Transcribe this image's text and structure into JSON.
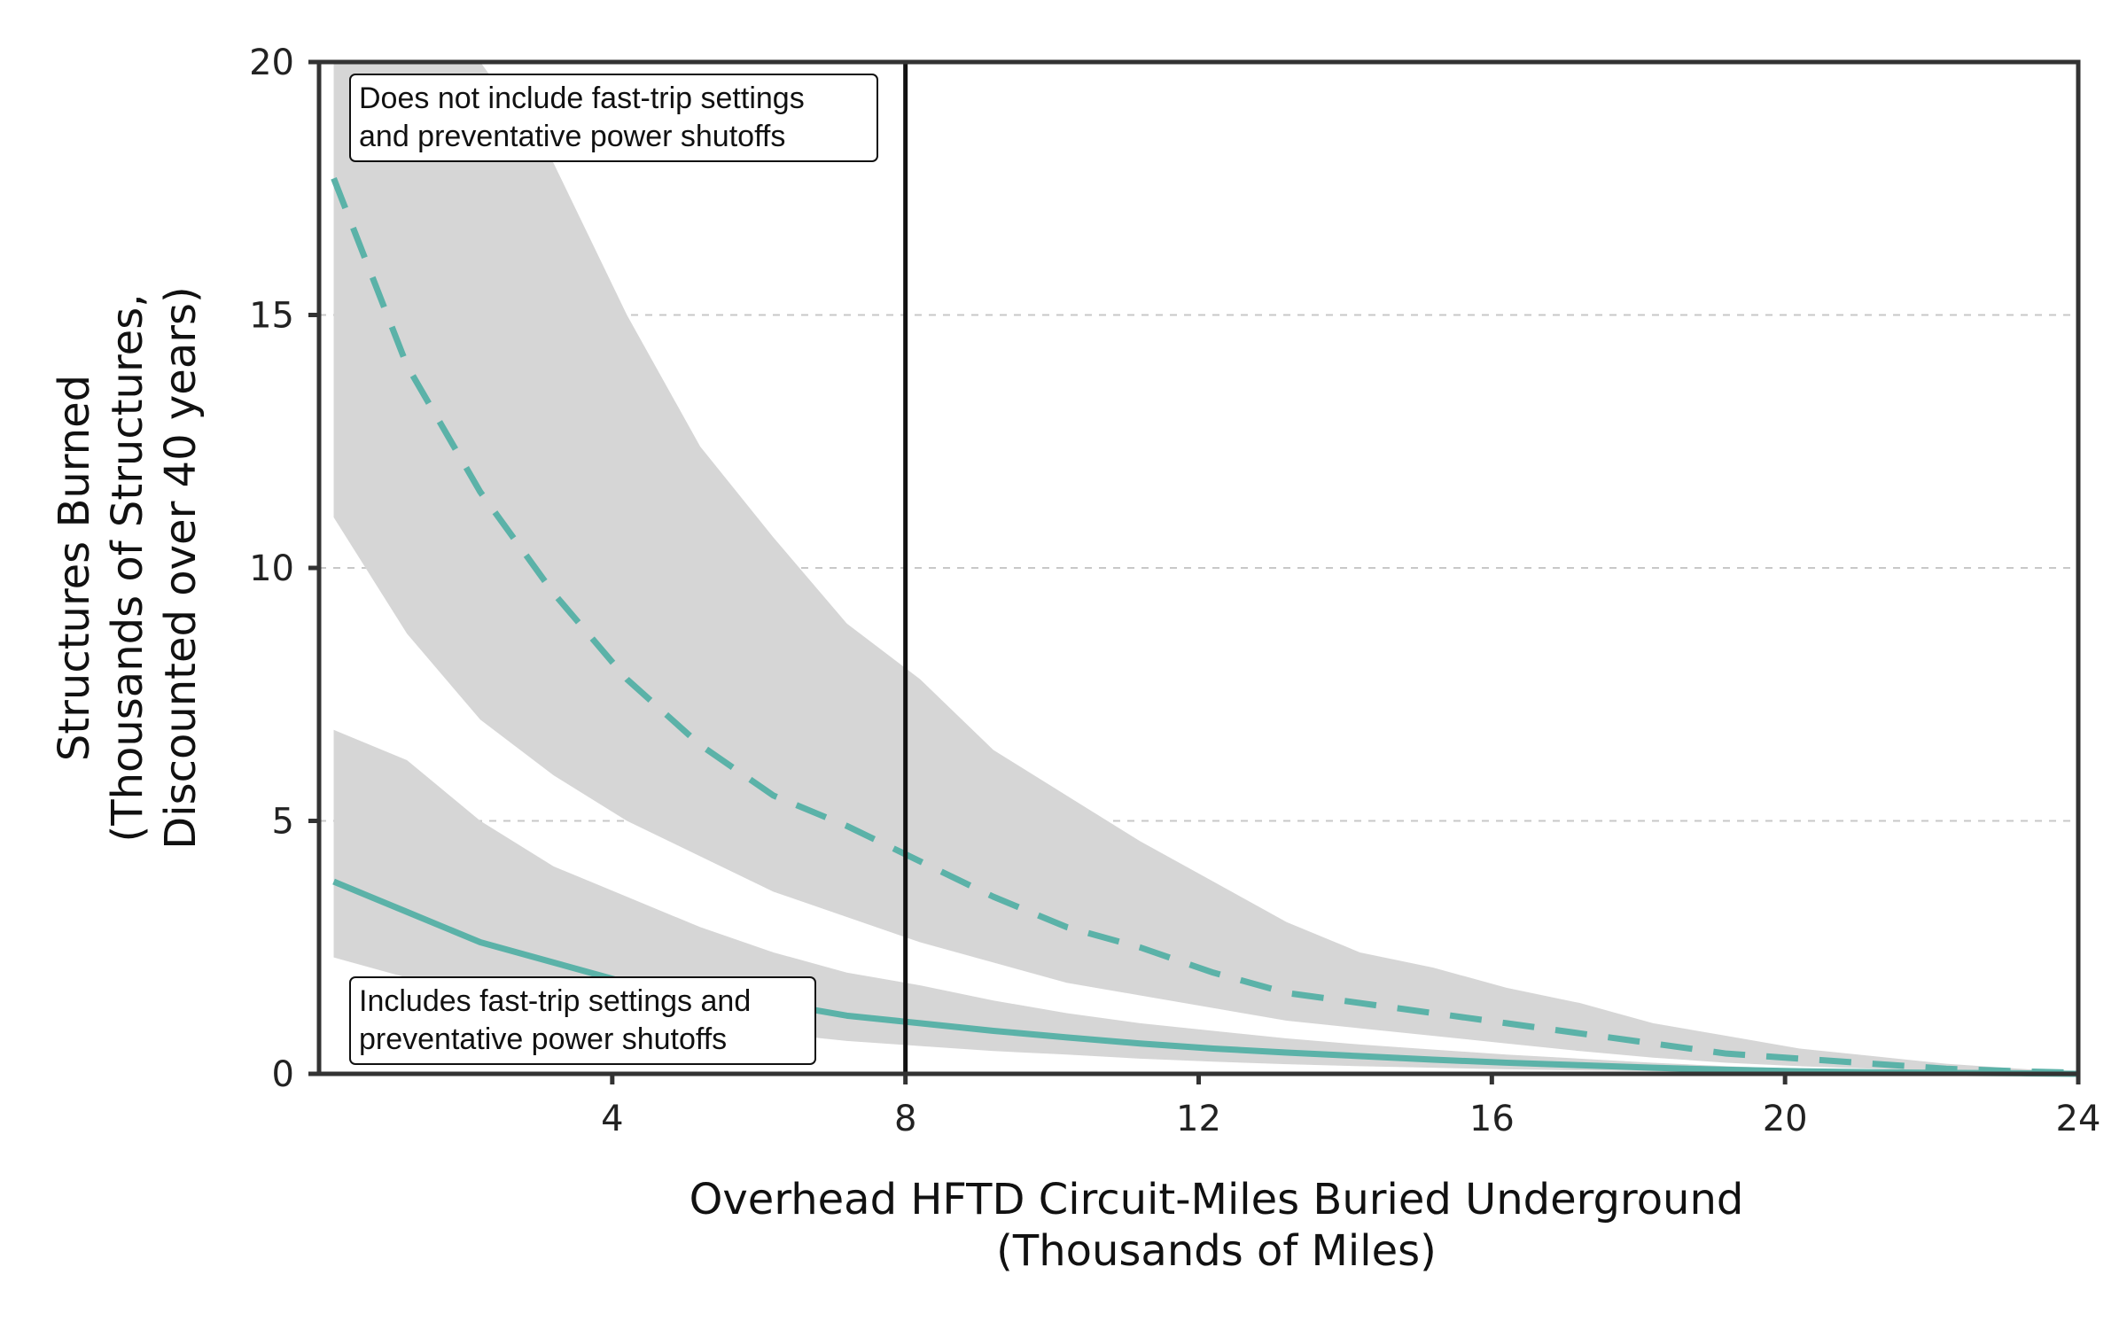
{
  "chart_data": {
    "type": "line",
    "title": "",
    "xlabel": [
      "Overhead HFTD Circuit-Miles Buried Underground",
      "(Thousands of Miles)"
    ],
    "ylabel": [
      "Structures Burned",
      "(Thousands of Structures,",
      "Discounted over 40 years)"
    ],
    "xlim": [
      0,
      24
    ],
    "ylim": [
      0,
      20
    ],
    "xticks": [
      "4",
      "8",
      "12",
      "16",
      "20",
      "24"
    ],
    "yticks": [
      "0",
      "5",
      "10",
      "15",
      "20"
    ],
    "grid": "horizontal dashed",
    "vertical_marker_x": 8,
    "colors": {
      "line": "#5bb2a8",
      "band": "#d6d6d6",
      "frame": "#333333"
    },
    "series": [
      {
        "style": "dashed",
        "x": [
          0.2,
          1.2,
          2.2,
          3.2,
          4.2,
          5.2,
          6.2,
          7.2,
          8.2,
          9.2,
          10.2,
          11.2,
          12.2,
          13.2,
          14.2,
          15.2,
          16.2,
          17.2,
          18.2,
          19.2,
          20.2,
          21.2,
          22.2,
          23.2,
          24
        ],
        "values": [
          17.7,
          14.0,
          11.5,
          9.5,
          7.8,
          6.5,
          5.5,
          4.9,
          4.2,
          3.5,
          2.9,
          2.5,
          2.0,
          1.6,
          1.4,
          1.2,
          1.0,
          0.8,
          0.6,
          0.4,
          0.3,
          0.2,
          0.1,
          0.05,
          0.02
        ],
        "band_low": [
          11.0,
          8.7,
          7.0,
          5.9,
          5.0,
          4.3,
          3.6,
          3.1,
          2.6,
          2.2,
          1.8,
          1.55,
          1.3,
          1.05,
          0.9,
          0.75,
          0.6,
          0.45,
          0.32,
          0.22,
          0.15,
          0.1,
          0.05,
          0.02,
          0.01
        ],
        "band_high": [
          20.5,
          20.5,
          20.5,
          18.0,
          15.0,
          12.4,
          10.6,
          8.9,
          7.8,
          6.4,
          5.5,
          4.6,
          3.8,
          3.0,
          2.4,
          2.1,
          1.7,
          1.4,
          1.0,
          0.75,
          0.5,
          0.35,
          0.2,
          0.1,
          0.03
        ]
      },
      {
        "style": "solid",
        "x": [
          0.2,
          1.2,
          2.2,
          3.2,
          4.2,
          5.2,
          6.2,
          7.2,
          8.2,
          9.2,
          10.2,
          11.2,
          12.2,
          13.2,
          14.2,
          15.2,
          16.2,
          17.2,
          18.2,
          19.2,
          20.2,
          21.2,
          22.2,
          23.2,
          24
        ],
        "values": [
          3.8,
          3.2,
          2.6,
          2.2,
          1.8,
          1.6,
          1.4,
          1.15,
          1.0,
          0.85,
          0.72,
          0.6,
          0.5,
          0.42,
          0.35,
          0.28,
          0.22,
          0.17,
          0.12,
          0.08,
          0.05,
          0.03,
          0.02,
          0.01,
          0.0
        ],
        "band_low": [
          2.3,
          1.9,
          1.6,
          1.35,
          1.15,
          0.95,
          0.8,
          0.65,
          0.55,
          0.45,
          0.38,
          0.3,
          0.24,
          0.19,
          0.15,
          0.12,
          0.09,
          0.07,
          0.05,
          0.03,
          0.02,
          0.01,
          0.01,
          0.0,
          0.0
        ],
        "band_high": [
          6.8,
          6.2,
          5.0,
          4.1,
          3.5,
          2.9,
          2.4,
          2.0,
          1.75,
          1.45,
          1.2,
          1.0,
          0.85,
          0.7,
          0.58,
          0.48,
          0.38,
          0.3,
          0.22,
          0.15,
          0.1,
          0.06,
          0.03,
          0.02,
          0.01
        ]
      }
    ],
    "annotations": [
      {
        "lines": [
          "Does not include fast-trip settings",
          "and preventative power shutoffs"
        ],
        "position": "top-left"
      },
      {
        "lines": [
          "Includes fast-trip settings and",
          "preventative power shutoffs"
        ],
        "position": "bottom-left"
      }
    ]
  }
}
